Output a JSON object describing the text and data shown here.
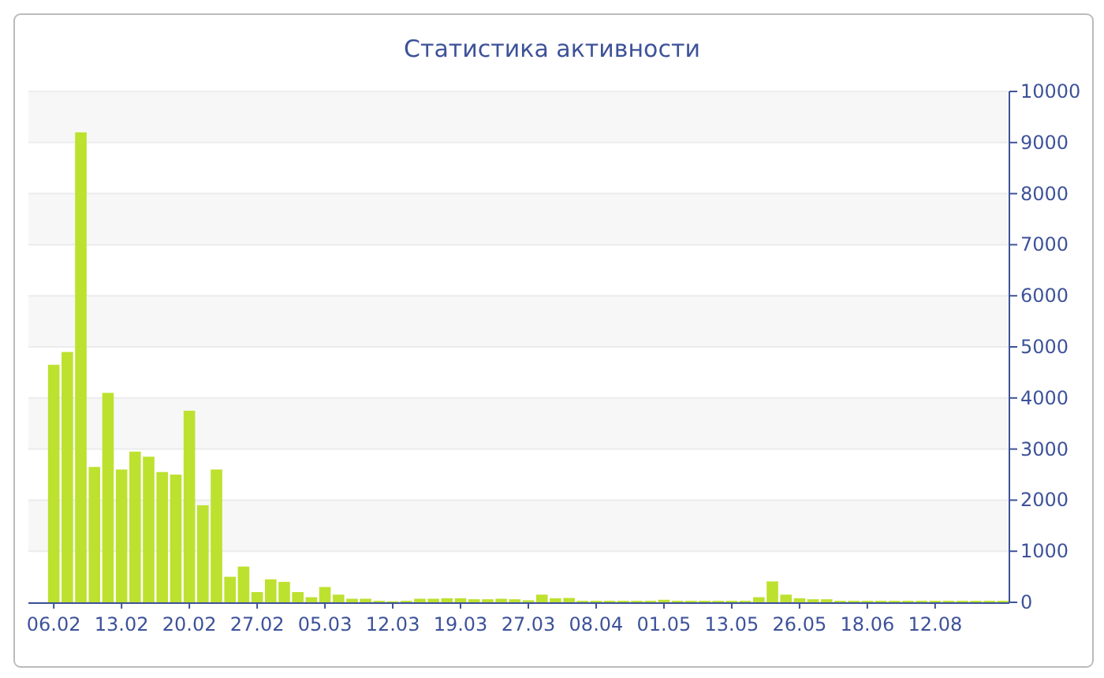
{
  "chart_data": {
    "type": "bar",
    "title": "Статистика активности",
    "categories": [
      "06.02",
      null,
      null,
      null,
      null,
      "13.02",
      null,
      null,
      null,
      null,
      "20.02",
      null,
      null,
      null,
      null,
      "27.02",
      null,
      null,
      null,
      null,
      "05.03",
      null,
      null,
      null,
      null,
      "12.03",
      null,
      null,
      null,
      null,
      "19.03",
      null,
      null,
      null,
      null,
      "27.03",
      null,
      null,
      null,
      null,
      "08.04",
      null,
      null,
      null,
      null,
      "01.05",
      null,
      null,
      null,
      null,
      "13.05",
      null,
      null,
      null,
      null,
      "26.05",
      null,
      null,
      null,
      null,
      "18.06",
      null,
      null,
      null,
      null,
      "12.08",
      null,
      null,
      null,
      null,
      null
    ],
    "values": [
      4650,
      4900,
      9200,
      2650,
      4100,
      2600,
      2950,
      2850,
      2550,
      2500,
      3750,
      1900,
      2600,
      500,
      700,
      200,
      450,
      400,
      200,
      100,
      300,
      150,
      70,
      70,
      30,
      20,
      30,
      70,
      70,
      80,
      80,
      60,
      60,
      70,
      60,
      40,
      150,
      80,
      85,
      30,
      30,
      30,
      30,
      30,
      30,
      50,
      30,
      30,
      30,
      30,
      30,
      30,
      100,
      410,
      150,
      80,
      60,
      60,
      30,
      30,
      30,
      30,
      30,
      30,
      30,
      30,
      30,
      30,
      30,
      30,
      30
    ],
    "color": "#bde12f",
    "ylim": [
      0,
      10000
    ],
    "yticks": [
      0,
      1000,
      2000,
      3000,
      4000,
      5000,
      6000,
      7000,
      8000,
      9000,
      10000
    ],
    "grid": "y"
  }
}
